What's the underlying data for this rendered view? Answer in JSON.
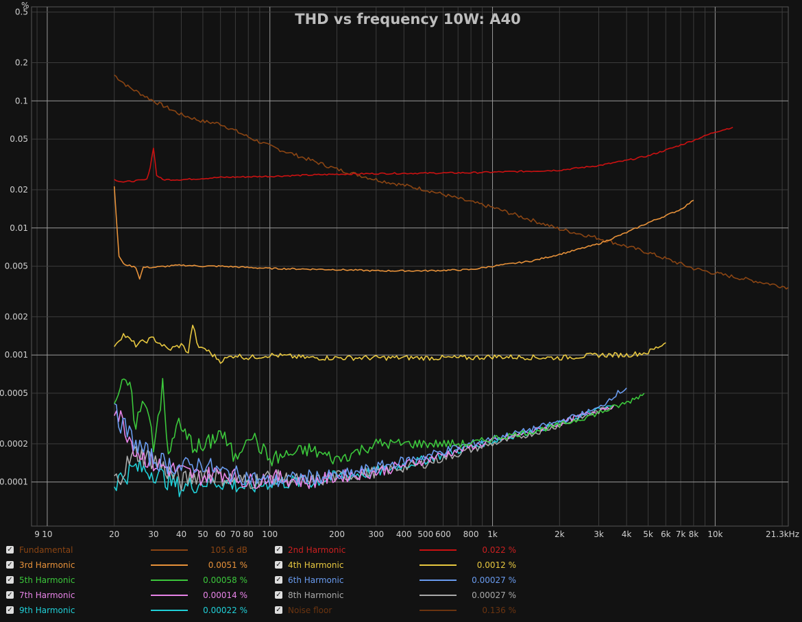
{
  "chart_data": {
    "type": "line",
    "title": "THD vs frequency 10W: A40",
    "ylabel": "%",
    "x_scale": "log",
    "y_scale": "log",
    "xlim": [
      8.5,
      21300
    ],
    "ylim": [
      4.5e-05,
      0.55
    ],
    "grid": true,
    "x_ticks": [
      {
        "v": 9,
        "label": "9"
      },
      {
        "v": 10,
        "label": "10"
      },
      {
        "v": 20,
        "label": "20"
      },
      {
        "v": 30,
        "label": "30"
      },
      {
        "v": 40,
        "label": "40"
      },
      {
        "v": 50,
        "label": "50"
      },
      {
        "v": 60,
        "label": "60"
      },
      {
        "v": 70,
        "label": "70"
      },
      {
        "v": 80,
        "label": "80"
      },
      {
        "v": 100,
        "label": "100"
      },
      {
        "v": 200,
        "label": "200"
      },
      {
        "v": 300,
        "label": "300"
      },
      {
        "v": 400,
        "label": "400"
      },
      {
        "v": 500,
        "label": "500"
      },
      {
        "v": 600,
        "label": "600"
      },
      {
        "v": 800,
        "label": "800"
      },
      {
        "v": 1000,
        "label": "1k"
      },
      {
        "v": 2000,
        "label": "2k"
      },
      {
        "v": 3000,
        "label": "3k"
      },
      {
        "v": 4000,
        "label": "4k"
      },
      {
        "v": 5000,
        "label": "5k"
      },
      {
        "v": 6000,
        "label": "6k"
      },
      {
        "v": 7000,
        "label": "7k"
      },
      {
        "v": 8000,
        "label": "8k"
      },
      {
        "v": 10000,
        "label": "10k"
      },
      {
        "v": 21300,
        "label": "21.3kHz"
      }
    ],
    "y_ticks": [
      {
        "v": 0.5,
        "label": "0.5"
      },
      {
        "v": 0.2,
        "label": "0.2"
      },
      {
        "v": 0.1,
        "label": "0.1"
      },
      {
        "v": 0.05,
        "label": "0.05"
      },
      {
        "v": 0.02,
        "label": "0.02"
      },
      {
        "v": 0.01,
        "label": "0.01"
      },
      {
        "v": 0.005,
        "label": "0.005"
      },
      {
        "v": 0.002,
        "label": "0.002"
      },
      {
        "v": 0.001,
        "label": "0.001"
      },
      {
        "v": 0.0005,
        "label": "0.0005"
      },
      {
        "v": 0.0002,
        "label": "0.0002"
      },
      {
        "v": 0.0001,
        "label": "0.0001"
      }
    ],
    "series": [
      {
        "name": "Noise floor",
        "color": "#8B4513",
        "x": [
          20,
          23,
          30,
          40,
          50,
          60,
          80,
          100,
          200,
          300,
          500,
          800,
          1000,
          2000,
          3000,
          5000,
          8000,
          10000,
          21300
        ],
        "y": [
          0.16,
          0.13,
          0.1,
          0.078,
          0.069,
          0.066,
          0.052,
          0.044,
          0.029,
          0.024,
          0.02,
          0.016,
          0.0145,
          0.0098,
          0.0083,
          0.0064,
          0.0048,
          0.0044,
          0.0034
        ]
      },
      {
        "name": "2nd Harmonic",
        "color": "#CC1111",
        "x": [
          20,
          22,
          25,
          28,
          29,
          30,
          31,
          33,
          40,
          60,
          100,
          200,
          300,
          500,
          800,
          1000,
          1500,
          2000,
          3000,
          4000,
          5000,
          6000,
          7000,
          8000,
          10000,
          12000
        ],
        "y": [
          0.024,
          0.023,
          0.0235,
          0.024,
          0.03,
          0.043,
          0.026,
          0.024,
          0.024,
          0.025,
          0.0255,
          0.0265,
          0.0268,
          0.027,
          0.0272,
          0.0275,
          0.028,
          0.0285,
          0.031,
          0.034,
          0.037,
          0.041,
          0.045,
          0.049,
          0.057,
          0.062
        ]
      },
      {
        "name": "3rd Harmonic",
        "color": "#E8923A",
        "x": [
          20,
          21,
          22,
          25,
          26,
          27,
          30,
          40,
          50,
          60,
          100,
          200,
          300,
          500,
          800,
          1000,
          1500,
          2000,
          3000,
          4000,
          5000,
          6000,
          7000,
          8000
        ],
        "y": [
          0.021,
          0.006,
          0.0052,
          0.0049,
          0.004,
          0.0049,
          0.0049,
          0.0051,
          0.005,
          0.005,
          0.0048,
          0.0047,
          0.0046,
          0.0046,
          0.0047,
          0.005,
          0.0055,
          0.0062,
          0.0075,
          0.0092,
          0.011,
          0.0125,
          0.014,
          0.0165
        ]
      },
      {
        "name": "4th Harmonic",
        "color": "#E8C840",
        "x": [
          20,
          22,
          25,
          28,
          30,
          35,
          40,
          43,
          45,
          48,
          50,
          60,
          70,
          80,
          100,
          150,
          200,
          300,
          500,
          800,
          1000,
          2000,
          3000,
          4000,
          5000,
          6000
        ],
        "y": [
          0.0012,
          0.00145,
          0.0012,
          0.0013,
          0.00135,
          0.0011,
          0.0012,
          0.00105,
          0.00175,
          0.0011,
          0.00115,
          0.0009,
          0.001,
          0.00095,
          0.001,
          0.00095,
          0.00095,
          0.00095,
          0.00095,
          0.00095,
          0.00097,
          0.00095,
          0.001,
          0.001,
          0.00105,
          0.00125
        ]
      },
      {
        "name": "5th Harmonic",
        "color": "#3CC83C",
        "x": [
          20,
          23,
          25,
          28,
          30,
          33,
          35,
          38,
          40,
          45,
          50,
          60,
          70,
          80,
          100,
          150,
          200,
          300,
          500,
          800,
          1000,
          1500,
          2000,
          3000,
          4000,
          4800
        ],
        "y": [
          0.00045,
          0.0006,
          0.0003,
          0.00045,
          0.0002,
          0.00055,
          0.00015,
          0.0003,
          0.00025,
          0.0002,
          0.00018,
          0.00025,
          0.00015,
          0.00025,
          0.00015,
          0.00018,
          0.00015,
          0.0002,
          0.0002,
          0.0002,
          0.00022,
          0.00025,
          0.00028,
          0.00035,
          0.00042,
          0.0005
        ]
      },
      {
        "name": "6th Harmonic",
        "color": "#6A9CF0",
        "x": [
          20,
          25,
          30,
          40,
          50,
          60,
          80,
          100,
          150,
          200,
          300,
          500,
          800,
          1000,
          1500,
          2000,
          3000,
          3500,
          4000
        ],
        "y": [
          0.00035,
          0.0002,
          0.00015,
          0.00013,
          0.00014,
          0.00012,
          0.00011,
          0.0001,
          0.00011,
          0.00011,
          0.00013,
          0.00016,
          0.0002,
          0.00022,
          0.00026,
          0.0003,
          0.00038,
          0.00048,
          0.00055
        ]
      },
      {
        "name": "7th Harmonic",
        "color": "#E884E8",
        "x": [
          20,
          25,
          30,
          40,
          50,
          60,
          80,
          100,
          150,
          200,
          300,
          500,
          800,
          1000,
          1500,
          2000,
          3000,
          3500
        ],
        "y": [
          0.0004,
          0.00018,
          0.00014,
          0.00012,
          0.00011,
          0.00012,
          0.0001,
          0.00011,
          0.0001,
          0.00011,
          0.00012,
          0.00015,
          0.00019,
          0.00021,
          0.00025,
          0.00029,
          0.00037,
          0.0004
        ]
      },
      {
        "name": "8th Harmonic",
        "color": "#AAAAAA",
        "x": [
          20,
          25,
          30,
          40,
          50,
          60,
          80,
          100,
          150,
          200,
          300,
          500,
          800,
          1000,
          1500,
          2000,
          3000,
          3500
        ],
        "y": [
          0.0001,
          0.00017,
          0.00015,
          0.0001,
          0.00012,
          0.00011,
          0.0001,
          0.00011,
          0.0001,
          0.00011,
          0.00012,
          0.00014,
          0.00018,
          0.0002,
          0.00024,
          0.00028,
          0.00036,
          0.0004
        ]
      },
      {
        "name": "9th Harmonic",
        "color": "#20D0D8",
        "x": [
          20,
          25,
          30,
          40,
          50,
          60,
          80,
          100,
          150,
          200,
          300,
          500,
          800,
          1000,
          1500,
          2000,
          3000,
          3500
        ],
        "y": [
          0.0001,
          0.00013,
          0.00012,
          9e-05,
          0.0001,
          0.0001,
          9e-05,
          0.0001,
          0.0001,
          0.00011,
          0.00012,
          0.00015,
          0.00019,
          0.00021,
          0.00025,
          0.00029,
          0.00037,
          0.0004
        ]
      }
    ]
  },
  "legend": [
    {
      "name": "Fundamental",
      "value": "105.6 dB",
      "color": "#8B4513",
      "text_color": "#8B4513"
    },
    {
      "name": "2nd Harmonic",
      "value": "0.022 %",
      "color": "#CC1111",
      "text_color": "#CC2020"
    },
    {
      "name": "3rd Harmonic",
      "value": "0.0051 %",
      "color": "#E8923A",
      "text_color": "#E8923A"
    },
    {
      "name": "4th Harmonic",
      "value": "0.0012 %",
      "color": "#E8C840",
      "text_color": "#E8C840"
    },
    {
      "name": "5th Harmonic",
      "value": "0.00058 %",
      "color": "#3CC83C",
      "text_color": "#3CC83C"
    },
    {
      "name": "6th Harmonic",
      "value": "0.00027 %",
      "color": "#6A9CF0",
      "text_color": "#6A9CF0"
    },
    {
      "name": "7th Harmonic",
      "value": "0.00014 %",
      "color": "#E884E8",
      "text_color": "#E884E8"
    },
    {
      "name": "8th Harmonic",
      "value": "0.00027 %",
      "color": "#AAAAAA",
      "text_color": "#AAAAAA"
    },
    {
      "name": "9th Harmonic",
      "value": "0.00022 %",
      "color": "#20D0D8",
      "text_color": "#20D0D8"
    },
    {
      "name": "Noise floor",
      "value": "0.136 %",
      "color": "#6B3410",
      "text_color": "#6B3410"
    }
  ]
}
